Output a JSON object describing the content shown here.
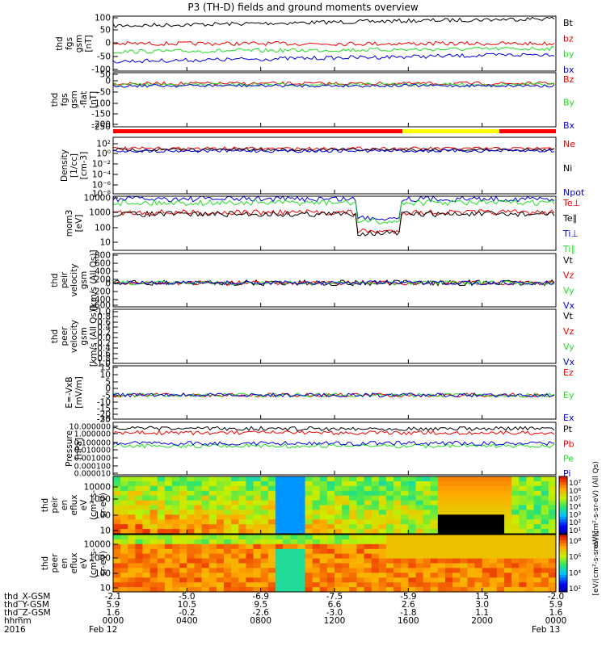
{
  "title": "P3 (TH-D) fields and ground moments overview",
  "colors": {
    "black": "#000000",
    "red": "#ee0000",
    "green": "#22dd22",
    "blue": "#0000dd",
    "yellow": "#ffff00",
    "status_red": "#ff0000"
  },
  "chart_data": [
    {
      "type": "line",
      "ylabel_lines": [
        "thd",
        "fgs",
        "gsm",
        "[nT]"
      ],
      "ylim": [
        -100,
        100
      ],
      "yticks": [
        "100",
        "50",
        "0",
        "-50",
        "-100"
      ],
      "legend": [
        {
          "name": "Bt",
          "color": "black"
        },
        {
          "name": "bz",
          "color": "red"
        },
        {
          "name": "by",
          "color": "green"
        },
        {
          "name": "bx",
          "color": "blue"
        }
      ]
    },
    {
      "type": "line",
      "ylabel_lines": [
        "thd",
        "fgs",
        "gsm",
        "-flat",
        "[nT]"
      ],
      "ylim": [
        -270,
        50
      ],
      "yticks": [
        "50",
        "0",
        "-50",
        "-100",
        "-150",
        "-200",
        "-250"
      ],
      "legend": [
        {
          "name": "Bz",
          "color": "red"
        },
        {
          "name": "By",
          "color": "green"
        },
        {
          "name": "Bx",
          "color": "blue"
        }
      ]
    },
    {
      "type": "line",
      "ylabel_lines": [
        "Density",
        "[1/cc]",
        "[cm-3]"
      ],
      "yticks": [
        "10²",
        "10⁰",
        "10⁻²",
        "10⁻⁴",
        "10⁻⁶",
        "10⁻⁸"
      ],
      "legend": [
        {
          "name": "Ne",
          "color": "red"
        },
        {
          "name": "Ni",
          "color": "black"
        },
        {
          "name": "Npot",
          "color": "blue"
        }
      ]
    },
    {
      "type": "line",
      "ylabel_lines": [
        "mom3",
        "[eV]"
      ],
      "scale": "log",
      "yticks": [
        "10000",
        "1000",
        "100",
        "10"
      ],
      "legend": [
        {
          "name": "Te⊥",
          "color": "red"
        },
        {
          "name": "Te∥",
          "color": "black"
        },
        {
          "name": "Ti⊥",
          "color": "blue"
        },
        {
          "name": "Ti∥",
          "color": "green"
        }
      ]
    },
    {
      "type": "line",
      "ylabel_lines": [
        "thd",
        "peir",
        "velocity",
        "gsm",
        "[km/s (All Qs)]"
      ],
      "ylim": [
        -600,
        800
      ],
      "yticks": [
        "800",
        "600",
        "400",
        "200",
        "0",
        "-200",
        "-400",
        "-600"
      ],
      "legend": [
        {
          "name": "Vt",
          "color": "black"
        },
        {
          "name": "Vz",
          "color": "red"
        },
        {
          "name": "Vy",
          "color": "green"
        },
        {
          "name": "Vx",
          "color": "blue"
        }
      ]
    },
    {
      "type": "line",
      "ylabel_lines": [
        "thd",
        "peer",
        "velocity",
        "gsm",
        "[km/s (All Qs)]"
      ],
      "ylim": [
        -1.0,
        1.0
      ],
      "yticks": [
        "1.0",
        "0.8",
        "0.6",
        "0.4",
        "0.2",
        "0.0",
        "-0.2",
        "-0.4",
        "-0.6",
        "-0.8",
        "-1.0"
      ],
      "legend": [
        {
          "name": "Vt",
          "color": "black"
        },
        {
          "name": "Vz",
          "color": "red"
        },
        {
          "name": "Vy",
          "color": "green"
        },
        {
          "name": "Vx",
          "color": "blue"
        }
      ]
    },
    {
      "type": "line",
      "ylabel_lines": [
        "E=-VxB",
        "[mV/m]"
      ],
      "ylim": [
        -30,
        15
      ],
      "yticks": [
        "15",
        "10",
        "5",
        "0",
        "-5",
        "-10",
        "-15",
        "-20",
        "-25",
        "-30"
      ],
      "legend": [
        {
          "name": "Ez",
          "color": "red"
        },
        {
          "name": "Ey",
          "color": "green"
        },
        {
          "name": "Ex",
          "color": "blue"
        }
      ]
    },
    {
      "type": "line",
      "ylabel_lines": [
        "Pressure",
        "[nPa]"
      ],
      "scale": "log",
      "yticks": [
        "10.000000",
        "1.000000",
        "0.100000",
        "0.010000",
        "0.001000",
        "0.000100",
        "0.000010"
      ],
      "legend": [
        {
          "name": "Pt",
          "color": "black"
        },
        {
          "name": "Pb",
          "color": "red"
        },
        {
          "name": "Pe",
          "color": "green"
        },
        {
          "name": "Pi",
          "color": "blue"
        }
      ]
    },
    {
      "type": "heatmap",
      "ylabel_lines": [
        "thd",
        "peir",
        "en",
        "eflux",
        "eV",
        "(cm²-s-",
        "sr-eV)"
      ],
      "yticks": [
        "10000",
        "1000",
        "100",
        "10"
      ],
      "colorbar_ticks": [
        "10⁷",
        "10⁶",
        "10⁵",
        "10⁴",
        "10³",
        "10²",
        "10¹"
      ],
      "colorbar_label": "eV/(cm²-s-sr-eV) (All Qs)"
    },
    {
      "type": "heatmap",
      "ylabel_lines": [
        "thd",
        "peer",
        "en",
        "eflux",
        "eV",
        "(cm²-s-",
        "sr-eV)"
      ],
      "yticks": [
        "10000",
        "1000",
        "100",
        "10"
      ],
      "colorbar_ticks": [
        "10⁸",
        "10⁶",
        "10⁴",
        "10²"
      ],
      "colorbar_label": "[eV/(cm²-s-sr-eV)]"
    }
  ],
  "xaxis": {
    "row_labels": [
      "thd_X-GSM",
      "thd_Y-GSM",
      "thd_Z-GSM",
      "hhmm",
      "2016"
    ],
    "columns": [
      [
        "-2.1",
        "5.9",
        "1.6",
        "0000",
        "Feb 12"
      ],
      [
        "-5.0",
        "10.5",
        "-0.2",
        "0400",
        ""
      ],
      [
        "-6.9",
        "9.5",
        "-2.6",
        "0800",
        ""
      ],
      [
        "-7.5",
        "6.6",
        "-3.0",
        "1200",
        ""
      ],
      [
        "-5.9",
        "2.6",
        "-1.8",
        "1600",
        ""
      ],
      [
        "1.5",
        "3.0",
        "1.1",
        "2000",
        ""
      ],
      [
        "-2.0",
        "5.9",
        "1.6",
        "0000",
        "Feb 13"
      ]
    ]
  }
}
